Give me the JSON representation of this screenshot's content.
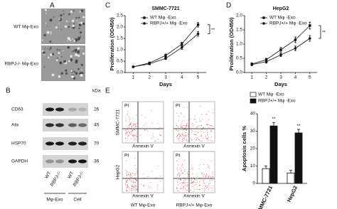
{
  "panel_labels": [
    "A",
    "B",
    "C",
    "D",
    "E"
  ],
  "panel_a": {
    "labels": [
      "WT Mφ-Exo",
      "RBPJ-/- Mφ-Exo"
    ]
  },
  "panel_b": {
    "proteins": [
      "CD63",
      "Alix",
      "HSP70",
      "GAPDH"
    ],
    "kda_header": "kDa",
    "kda": [
      26,
      45,
      70,
      36
    ],
    "lanes": [
      "WT",
      "RBPJ-/-",
      "WT",
      "RBPJ-/-"
    ],
    "groups": [
      "Mφ-Exo",
      "Cell"
    ]
  },
  "panel_e": {
    "rows": [
      "SMMC-7721",
      "HepG2"
    ],
    "xaxis": "Annexin V",
    "yaxis": "PI",
    "columns": [
      "WT Mφ-Exo",
      "RBPJ+/+ Mφ-Exo"
    ]
  },
  "chart_data": [
    {
      "type": "line",
      "title": "SMMC-7721",
      "xlabel": "Days",
      "ylabel": "Proliferation (OD450)",
      "x": [
        1,
        2,
        3,
        4,
        5
      ],
      "xlim": [
        0.5,
        5.5
      ],
      "xticks": [
        1,
        2,
        3,
        4,
        5
      ],
      "ylim": [
        0,
        2.5
      ],
      "yticks": [
        {
          "value": 0,
          "label": "0.0"
        },
        0.5,
        {
          "value": 1,
          "label": "1.0"
        },
        1.5,
        {
          "value": 2,
          "label": "2.0"
        },
        2.5
      ],
      "series": [
        {
          "name": "WT Mφ -Exo",
          "color": "#111111",
          "marker": "square",
          "values": [
            0.25,
            0.42,
            0.75,
            1.25,
            2.1
          ],
          "errors": [
            0.03,
            0.04,
            0.06,
            0.08,
            0.1
          ]
        },
        {
          "name": "RBPJ+/+ Mφ -Exo",
          "color": "#111111",
          "marker": "circle",
          "values": [
            0.25,
            0.38,
            0.62,
            1.1,
            1.7
          ],
          "errors": [
            0.03,
            0.04,
            0.05,
            0.08,
            0.1
          ]
        }
      ],
      "annotation": "**"
    },
    {
      "type": "line",
      "title": "HepG2",
      "xlabel": "Days",
      "ylabel": "Proliferation (OD450)",
      "x": [
        1,
        2,
        3,
        4,
        5
      ],
      "xlim": [
        0.5,
        5.5
      ],
      "xticks": [
        1,
        2,
        3,
        4,
        5
      ],
      "ylim": [
        0,
        2
      ],
      "yticks": [
        {
          "value": 0,
          "label": "0.0"
        },
        0.5,
        {
          "value": 1,
          "label": "1.0"
        },
        1.5,
        {
          "value": 2,
          "label": "2.0"
        }
      ],
      "series": [
        {
          "name": "WT Mφ -Exo",
          "color": "#111111",
          "marker": "square",
          "values": [
            0.3,
            0.45,
            0.8,
            1.15,
            1.65
          ],
          "errors": [
            0.04,
            0.05,
            0.08,
            0.1,
            0.12
          ]
        },
        {
          "name": "RBPJ+/+ Mφ -Exo",
          "color": "#111111",
          "marker": "circle",
          "values": [
            0.28,
            0.38,
            0.62,
            0.85,
            1.2
          ],
          "errors": [
            0.04,
            0.05,
            0.06,
            0.08,
            0.1
          ]
        }
      ],
      "annotation": "**"
    },
    {
      "type": "bar",
      "ylabel": "Apoptosis cells %",
      "categories": [
        "SMMC-7721",
        "HepG2"
      ],
      "ylim": [
        0,
        40
      ],
      "yticks": [
        0,
        10,
        20,
        30,
        40
      ],
      "series": [
        {
          "name": "WT Mφ -Exo",
          "color": "#ffffff",
          "values": [
            8.5,
            6
          ],
          "errors": [
            1.5,
            1.5
          ]
        },
        {
          "name": "RBPJ+/+ Mφ -Exo",
          "color": "#111111",
          "values": [
            33,
            29
          ],
          "errors": [
            2,
            2
          ]
        }
      ],
      "annotations": [
        "**",
        "**"
      ]
    }
  ]
}
